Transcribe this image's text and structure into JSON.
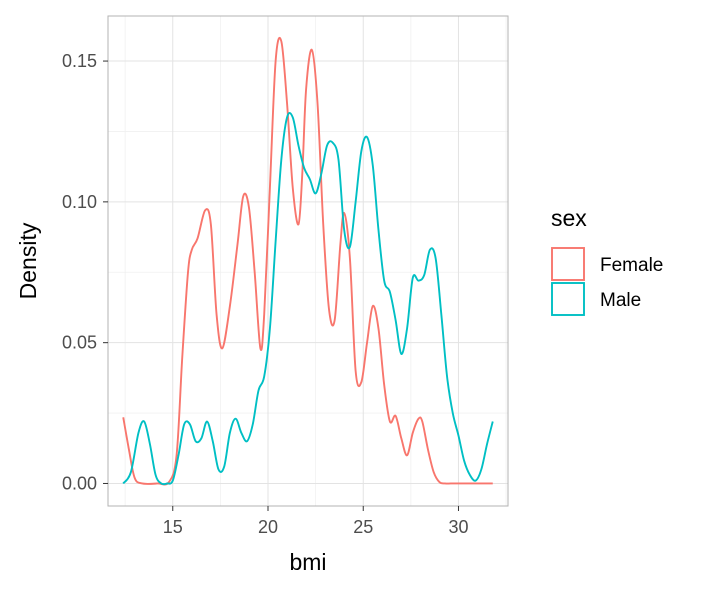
{
  "chart_data": {
    "type": "line",
    "subtype": "density",
    "title": "",
    "xlabel": "bmi",
    "ylabel": "Density",
    "xlim": [
      11.6,
      32.6
    ],
    "ylim": [
      -0.008,
      0.166
    ],
    "x_ticks": [
      15,
      20,
      25,
      30
    ],
    "x_tick_labels": [
      "15",
      "20",
      "25",
      "30"
    ],
    "y_ticks": [
      0.0,
      0.05,
      0.1,
      0.15
    ],
    "y_tick_labels": [
      "0.00",
      "0.05",
      "0.10",
      "0.15"
    ],
    "grid": true,
    "legend": {
      "title": "sex",
      "position": "right"
    },
    "series": [
      {
        "name": "Female",
        "color": "#f8766d",
        "x": [
          12.4,
          12.7,
          13.0,
          13.4,
          14.2,
          14.8,
          15.2,
          15.5,
          15.8,
          16.0,
          16.3,
          16.7,
          17.0,
          17.3,
          17.6,
          18.0,
          18.4,
          18.7,
          19.0,
          19.3,
          19.6,
          19.8,
          20.1,
          20.4,
          20.7,
          21.0,
          21.3,
          21.6,
          21.8,
          22.0,
          22.3,
          22.6,
          22.9,
          23.2,
          23.5,
          23.8,
          24.0,
          24.3,
          24.6,
          24.9,
          25.2,
          25.5,
          25.8,
          26.1,
          26.4,
          26.7,
          27.0,
          27.3,
          27.6,
          27.9,
          28.1,
          28.4,
          28.7,
          29.0,
          29.3,
          29.6,
          30.0,
          30.5,
          31.0,
          31.8
        ],
        "y": [
          0.0235,
          0.012,
          0.002,
          0.0,
          0.0,
          0.0005,
          0.01,
          0.045,
          0.075,
          0.083,
          0.087,
          0.097,
          0.092,
          0.06,
          0.048,
          0.063,
          0.085,
          0.102,
          0.098,
          0.075,
          0.048,
          0.06,
          0.105,
          0.15,
          0.157,
          0.135,
          0.105,
          0.092,
          0.11,
          0.14,
          0.154,
          0.135,
          0.092,
          0.062,
          0.058,
          0.085,
          0.096,
          0.08,
          0.04,
          0.036,
          0.05,
          0.063,
          0.055,
          0.035,
          0.022,
          0.024,
          0.016,
          0.01,
          0.018,
          0.023,
          0.022,
          0.012,
          0.004,
          0.0005,
          0.0,
          0.0,
          0.0,
          0.0,
          0.0,
          0.0
        ]
      },
      {
        "name": "Male",
        "color": "#00bfc4",
        "x": [
          12.4,
          12.8,
          13.2,
          13.5,
          13.8,
          14.1,
          14.4,
          14.7,
          15.0,
          15.3,
          15.6,
          15.9,
          16.2,
          16.5,
          16.8,
          17.1,
          17.4,
          17.7,
          18.0,
          18.3,
          18.6,
          18.9,
          19.2,
          19.5,
          19.8,
          20.1,
          20.4,
          20.7,
          21.0,
          21.3,
          21.6,
          21.9,
          22.2,
          22.5,
          22.8,
          23.1,
          23.4,
          23.7,
          24.0,
          24.3,
          24.6,
          24.9,
          25.2,
          25.5,
          25.8,
          26.1,
          26.4,
          26.7,
          27.0,
          27.3,
          27.6,
          27.9,
          28.2,
          28.5,
          28.8,
          29.1,
          29.4,
          29.7,
          30.0,
          30.3,
          30.6,
          30.9,
          31.2,
          31.5,
          31.8
        ],
        "y": [
          0.0,
          0.004,
          0.018,
          0.022,
          0.014,
          0.003,
          0.0,
          0.0,
          0.001,
          0.01,
          0.021,
          0.021,
          0.015,
          0.016,
          0.022,
          0.015,
          0.005,
          0.006,
          0.018,
          0.023,
          0.018,
          0.015,
          0.021,
          0.033,
          0.038,
          0.055,
          0.086,
          0.115,
          0.13,
          0.13,
          0.12,
          0.112,
          0.108,
          0.103,
          0.11,
          0.12,
          0.121,
          0.115,
          0.09,
          0.084,
          0.1,
          0.118,
          0.123,
          0.113,
          0.09,
          0.072,
          0.068,
          0.058,
          0.046,
          0.055,
          0.073,
          0.072,
          0.074,
          0.083,
          0.08,
          0.06,
          0.038,
          0.025,
          0.017,
          0.008,
          0.003,
          0.001,
          0.005,
          0.014,
          0.022
        ]
      }
    ]
  }
}
